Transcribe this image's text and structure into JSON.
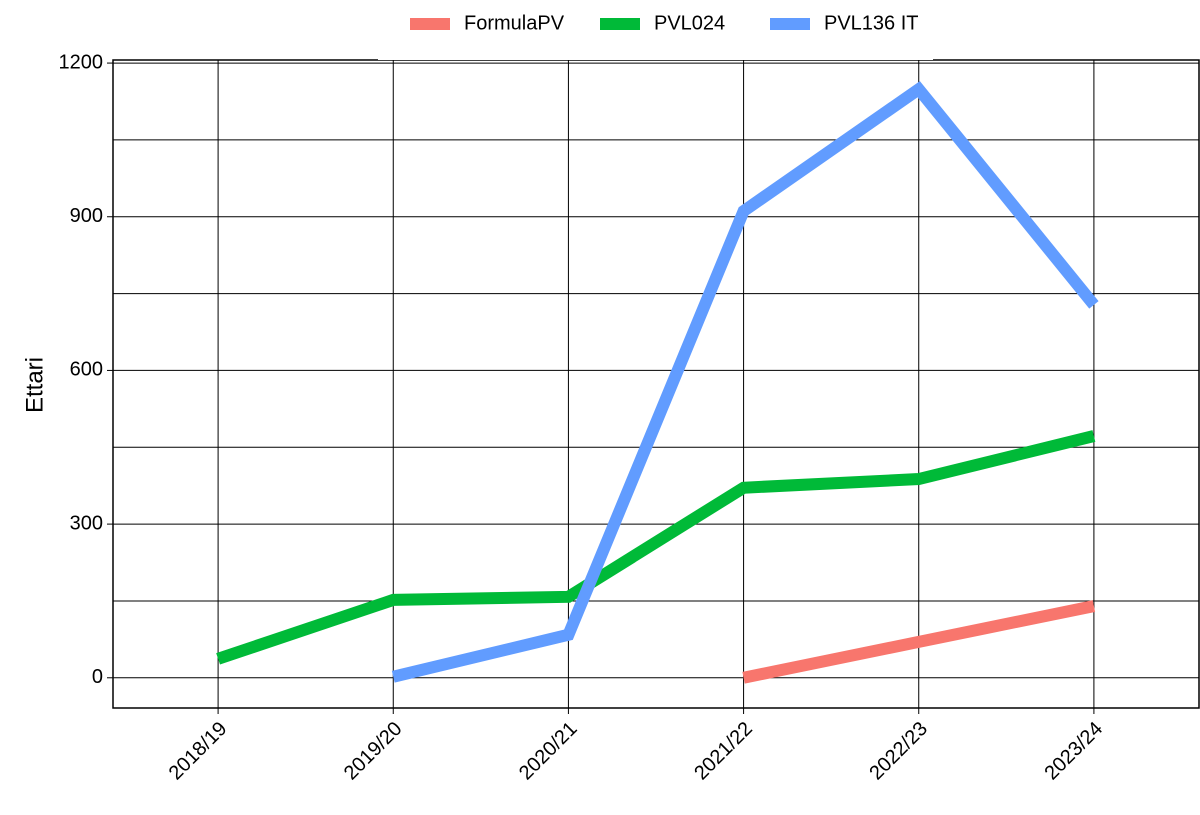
{
  "chart_data": {
    "type": "line",
    "y_label": "Ettari",
    "categories": [
      "2018/19",
      "2019/20",
      "2020/21",
      "2021/22",
      "2022/23",
      "2023/24"
    ],
    "series": [
      {
        "name": "FormulaPV",
        "color": "#f8766d",
        "values": [
          null,
          null,
          null,
          0,
          70,
          140
        ]
      },
      {
        "name": "PVL024",
        "color": "#00ba38",
        "values": [
          37,
          152,
          158,
          371,
          388,
          472
        ]
      },
      {
        "name": "PVL136 IT",
        "color": "#619cff",
        "values": [
          null,
          2,
          84,
          911,
          1149,
          728
        ]
      }
    ],
    "ylim": [
      -59,
      1206
    ],
    "yticks": [
      0,
      300,
      600,
      900,
      1200
    ],
    "minor_yticks": [
      150,
      450,
      750,
      1050
    ],
    "grid": true,
    "legend": "top"
  }
}
